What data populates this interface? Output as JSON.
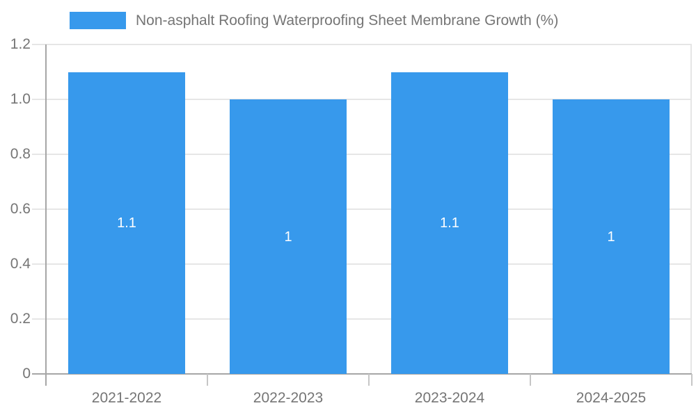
{
  "chart_data": {
    "type": "bar",
    "title": "",
    "legend_label": "Non-asphalt Roofing Waterproofing Sheet Membrane Growth (%)",
    "legend_position": "top-left",
    "categories": [
      "2021-2022",
      "2022-2023",
      "2023-2024",
      "2024-2025"
    ],
    "series": [
      {
        "name": "Non-asphalt Roofing Waterproofing Sheet Membrane Growth (%)",
        "values": [
          1.1,
          1,
          1.1,
          1
        ],
        "value_labels": [
          "1.1",
          "1",
          "1.1",
          "1"
        ]
      }
    ],
    "xlabel": "",
    "ylabel": "",
    "ylim": [
      0,
      1.2
    ],
    "y_tick_values": [
      0,
      0.2,
      0.4,
      0.6,
      0.8,
      1.0,
      1.2
    ],
    "y_tick_labels": [
      "0",
      "0.2",
      "0.4",
      "0.6",
      "0.8",
      "1.0",
      "1.2"
    ],
    "grid": true,
    "colors": {
      "bar": "#3799ec",
      "grid": "#e6e6e6",
      "axis": "#a6a6a6",
      "boundary_tick": "#c6c6c6",
      "plot_border": "#e6e6e6",
      "tick_text": "#757575",
      "bar_label_text": "#ffffff",
      "background": "#ffffff"
    }
  }
}
